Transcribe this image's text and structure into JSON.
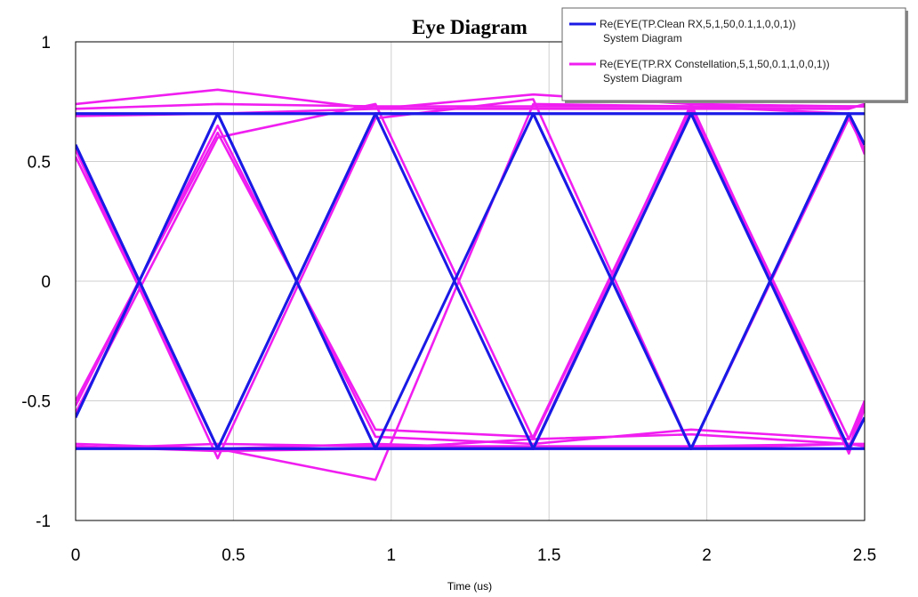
{
  "chart_data": {
    "type": "line",
    "title": "Eye Diagram",
    "xlabel": "Time (us)",
    "ylabel": "",
    "xlim": [
      0,
      2.5
    ],
    "ylim": [
      -1,
      1
    ],
    "xticks": [
      "0",
      "0.5",
      "1",
      "1.5",
      "2",
      "2.5"
    ],
    "yticks": [
      "1",
      "0.5",
      "0",
      "-0.5",
      "-1"
    ],
    "grid": true,
    "legend_position": "top-right",
    "series": [
      {
        "name": "Re(EYE(TP.Clean RX,5,1,50,0.1,1,0,0,1))",
        "subtitle": "System Diagram",
        "color": "#1a1ae6",
        "x": [
          0,
          0.45,
          0.95,
          1.45,
          1.95,
          2.45,
          2.5
        ],
        "traces": [
          [
            0.57,
            -0.7,
            -0.7,
            -0.7,
            -0.7,
            -0.7,
            -0.7
          ],
          [
            -0.57,
            0.7,
            0.7,
            0.7,
            0.7,
            0.7,
            0.7
          ],
          [
            0.7,
            0.7,
            0.7,
            0.7,
            0.7,
            0.7,
            0.7
          ],
          [
            -0.7,
            -0.7,
            -0.7,
            -0.7,
            -0.7,
            -0.7,
            -0.7
          ],
          [
            0.7,
            0.7,
            -0.7,
            0.7,
            -0.7,
            0.7,
            0.57
          ],
          [
            -0.7,
            -0.7,
            0.7,
            -0.7,
            0.7,
            -0.7,
            -0.57
          ],
          [
            0.57,
            -0.7,
            0.7,
            0.7,
            -0.7,
            0.7,
            0.57
          ],
          [
            -0.57,
            0.7,
            -0.7,
            -0.7,
            0.7,
            -0.7,
            -0.57
          ]
        ]
      },
      {
        "name": "Re(EYE(TP.RX Constellation,5,1,50,0.1,1,0,0,1))",
        "subtitle": "System Diagram",
        "color": "#f01ef0",
        "x": [
          0,
          0.45,
          0.95,
          1.45,
          1.95,
          2.45,
          2.5
        ],
        "traces": [
          [
            0.74,
            0.8,
            0.72,
            0.72,
            0.72,
            0.72,
            0.74
          ],
          [
            0.72,
            0.74,
            0.73,
            0.73,
            0.73,
            0.73,
            0.73
          ],
          [
            0.69,
            0.7,
            0.72,
            0.78,
            0.74,
            0.73,
            0.73
          ],
          [
            0.55,
            -0.74,
            0.68,
            0.76,
            -0.7,
            0.68,
            0.55
          ],
          [
            0.52,
            -0.7,
            -0.83,
            0.74,
            0.73,
            0.7,
            0.53
          ],
          [
            -0.5,
            0.62,
            -0.62,
            -0.65,
            0.72,
            -0.66,
            -0.52
          ],
          [
            -0.55,
            0.6,
            0.74,
            -0.66,
            0.72,
            -0.72,
            -0.53
          ],
          [
            -0.52,
            0.65,
            -0.65,
            -0.68,
            -0.62,
            -0.66,
            -0.5
          ],
          [
            -0.68,
            -0.7,
            -0.68,
            -0.7,
            -0.7,
            -0.68,
            -0.69
          ],
          [
            -0.7,
            -0.68,
            -0.69,
            -0.69,
            -0.69,
            -0.68,
            -0.68
          ],
          [
            -0.69,
            -0.71,
            -0.7,
            -0.66,
            -0.64,
            -0.68,
            -0.69
          ],
          [
            0.56,
            -0.7,
            0.7,
            -0.7,
            0.74,
            -0.7,
            -0.5
          ]
        ]
      }
    ]
  }
}
